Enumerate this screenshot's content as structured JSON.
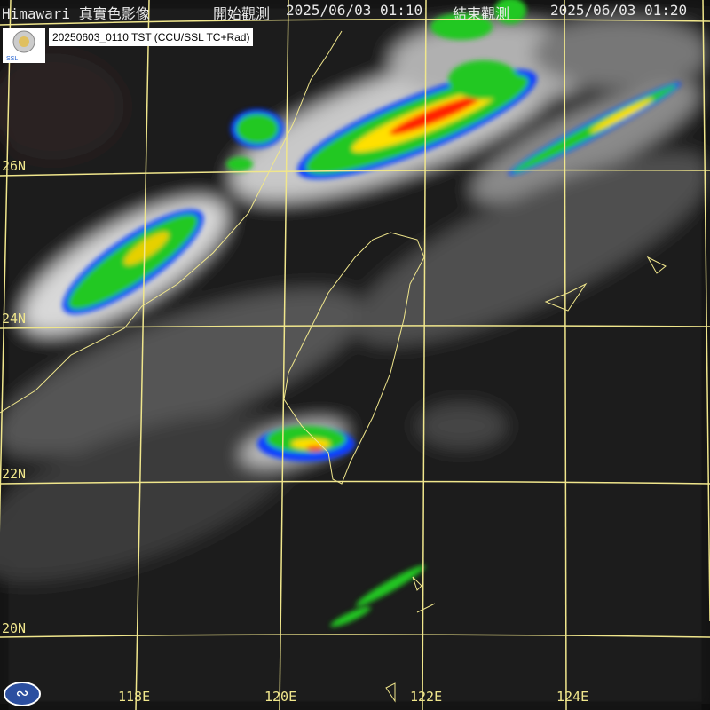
{
  "header": {
    "title": "Himawari 真實色影像",
    "start_label": "開始觀測",
    "start_time": "2025/06/03 01:10",
    "end_label": "結束觀測",
    "end_time": "2025/06/03 01:20"
  },
  "product_label": "20250603_0110 TST (CCU/SSL TC+Rad)",
  "logo_text": "Severe Storm Lab",
  "latitudes": [
    "26N",
    "24N",
    "22N",
    "20N"
  ],
  "longitudes": [
    "118E",
    "120E",
    "122E",
    "124E"
  ],
  "colors": {
    "grid": "#f0e68c",
    "coast": "#f0e68c",
    "radar_low": "#0a3cff",
    "radar_mid": "#22c822",
    "radar_high": "#ffe000",
    "radar_max": "#ff2000"
  }
}
